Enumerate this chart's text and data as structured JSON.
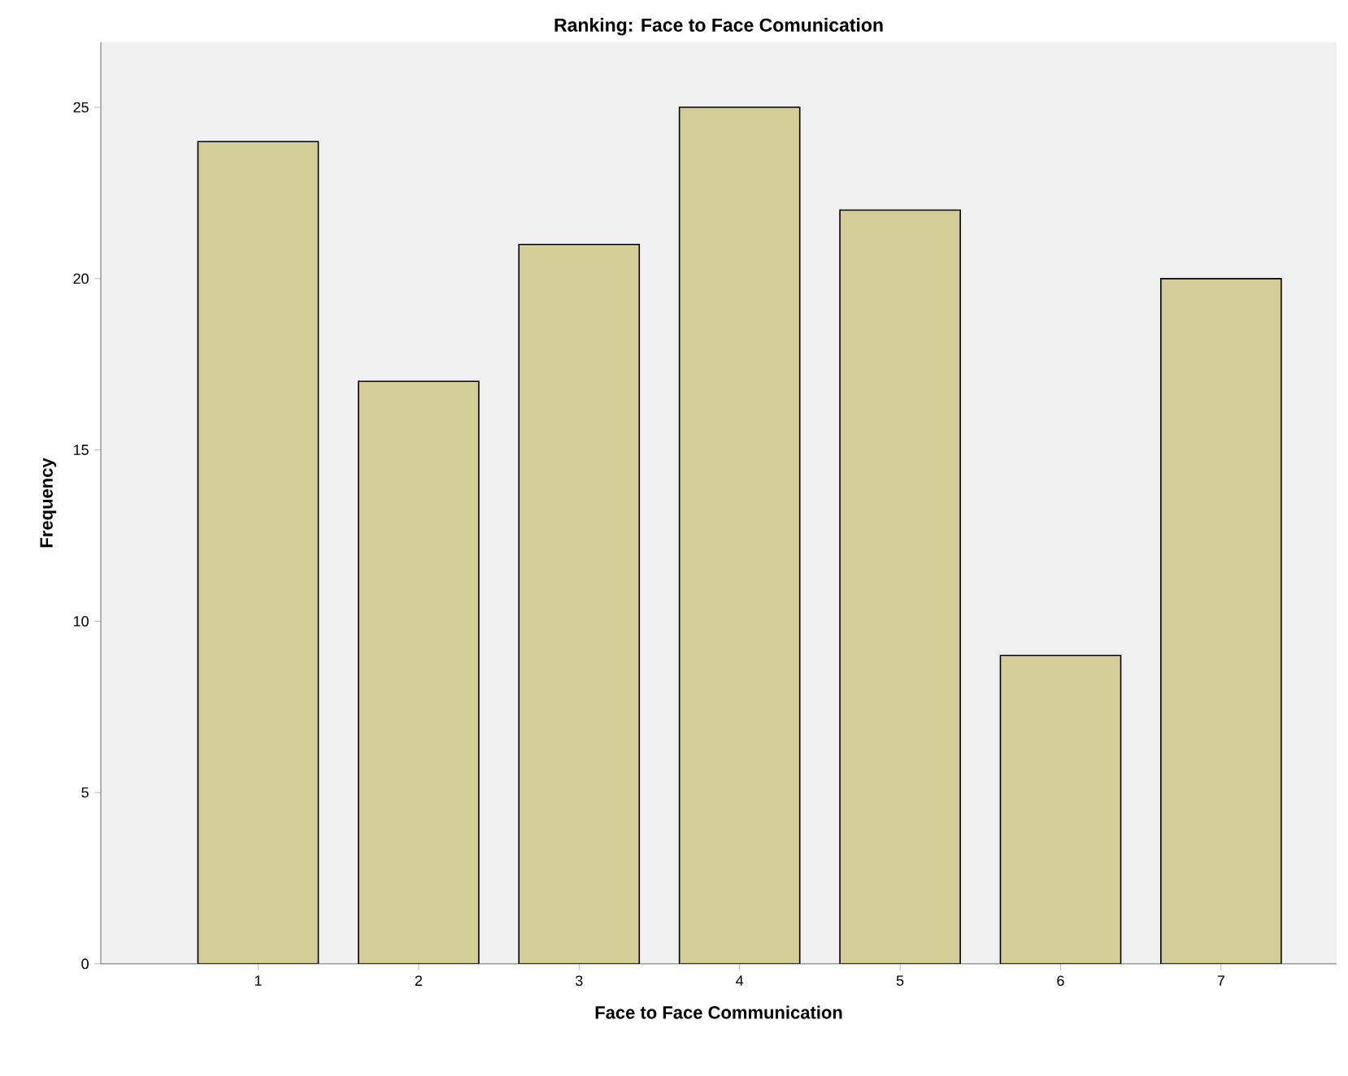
{
  "chart_data": {
    "type": "bar",
    "title": "Ranking: Face to Face Comunication",
    "xlabel": "Face to Face Communication",
    "ylabel": "Frequency",
    "categories": [
      "1",
      "2",
      "3",
      "4",
      "5",
      "6",
      "7"
    ],
    "values": [
      24,
      17,
      21,
      25,
      22,
      9,
      20
    ],
    "color": "#d3ce97",
    "ylim": [
      0,
      26.9
    ],
    "yticks": [
      0,
      5,
      10,
      15,
      20,
      25
    ],
    "grid": false
  }
}
